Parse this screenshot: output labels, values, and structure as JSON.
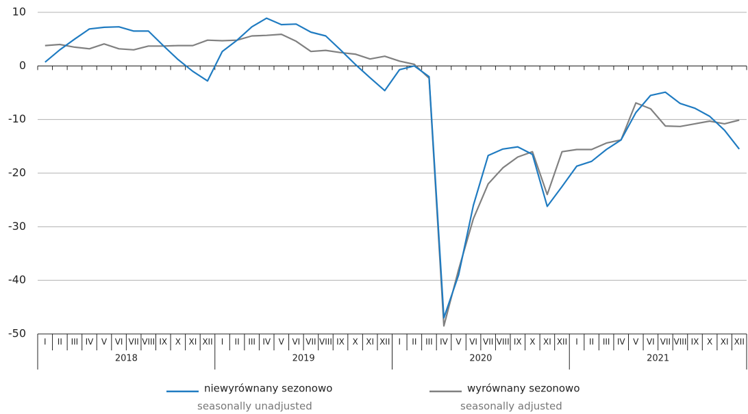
{
  "chart_data": {
    "type": "line",
    "categories": [
      "I",
      "II",
      "III",
      "IV",
      "V",
      "VI",
      "VII",
      "VIII",
      "IX",
      "X",
      "XI",
      "XII",
      "I",
      "II",
      "III",
      "IV",
      "V",
      "VI",
      "VII",
      "VIII",
      "IX",
      "X",
      "XI",
      "XII",
      "I",
      "II",
      "III",
      "IV",
      "V",
      "VI",
      "VII",
      "VIII",
      "IX",
      "X",
      "XI",
      "XII",
      "I",
      "II",
      "III",
      "IV",
      "V",
      "VI",
      "VII",
      "VIII",
      "IX",
      "X",
      "XI",
      "XII"
    ],
    "groups": [
      "2018",
      "2019",
      "2020",
      "2021"
    ],
    "series": [
      {
        "name": "niewyrównany sezonowo",
        "name_en": "seasonally unadjusted",
        "color": "#1f7bc1",
        "values": [
          0.7,
          3.0,
          5.0,
          6.9,
          7.2,
          7.3,
          6.5,
          6.5,
          3.8,
          1.2,
          -1.0,
          -2.8,
          2.7,
          4.8,
          7.3,
          8.9,
          7.7,
          7.8,
          6.3,
          5.6,
          3.0,
          0.3,
          -2.2,
          -4.6,
          -0.7,
          0.0,
          -2.0,
          -47.0,
          -39.0,
          -26.0,
          -16.7,
          -15.5,
          -15.1,
          -16.5,
          -26.2,
          -22.5,
          -18.7,
          -17.8,
          -15.6,
          -13.8,
          -8.7,
          -5.5,
          -4.9,
          -7.0,
          -7.9,
          -9.4,
          -12.0,
          -15.5
        ]
      },
      {
        "name": "wyrównany sezonowo",
        "name_en": "seasonally adjusted",
        "color": "#808080",
        "values": [
          3.8,
          4.0,
          3.5,
          3.2,
          4.1,
          3.2,
          3.0,
          3.7,
          3.7,
          3.8,
          3.8,
          4.8,
          4.7,
          4.8,
          5.6,
          5.7,
          5.9,
          4.6,
          2.7,
          2.9,
          2.5,
          2.2,
          1.3,
          1.8,
          0.9,
          0.3,
          -2.3,
          -48.5,
          -38.0,
          -28.5,
          -22.0,
          -19.0,
          -17.0,
          -16.0,
          -24.0,
          -16.0,
          -15.6,
          -15.6,
          -14.4,
          -13.8,
          -6.9,
          -8.0,
          -11.2,
          -11.3,
          -10.8,
          -10.3,
          -10.8,
          -10.1
        ]
      }
    ],
    "ylim": [
      -50,
      10
    ],
    "yticks": [
      -50,
      -40,
      -30,
      -20,
      -10,
      0,
      10
    ],
    "grid": true
  }
}
